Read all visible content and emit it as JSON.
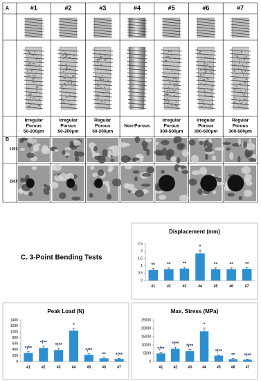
{
  "panel_a": {
    "label": "A",
    "headers": [
      "#1",
      "#2",
      "#3",
      "#4",
      "#5",
      "#6",
      "#7"
    ],
    "descriptions": [
      [
        "Irregular",
        "Porous",
        "50-200μm"
      ],
      [
        "Irregular",
        "Porous",
        "50-200μm"
      ],
      [
        "Regular",
        "Porous",
        "50-200μm"
      ],
      [
        "Non-Porous"
      ],
      [
        "Irregular",
        "Porous",
        "300-500μm"
      ],
      [
        "Irregular",
        "Porous",
        "300-500μm"
      ],
      [
        "Regular",
        "Porous",
        "300-500μm"
      ]
    ]
  },
  "panel_b": {
    "label": "B",
    "magnifications": [
      "100X",
      "250X"
    ]
  },
  "panel_c_title": "C. 3-Point Bending Tests",
  "chart_data": [
    {
      "type": "bar",
      "title": "Displacement (mm)",
      "categories": [
        "#1",
        "#2",
        "#3",
        "#4",
        "#5",
        "#6",
        "#7"
      ],
      "values": [
        0.72,
        0.78,
        0.82,
        1.85,
        0.78,
        0.78,
        0.8
      ],
      "errors": [
        0.1,
        0.08,
        0.1,
        0.22,
        0.08,
        0.08,
        0.08
      ],
      "annotations": [
        "**",
        "**",
        "**",
        "*",
        "**",
        "**",
        "**"
      ],
      "color": "#2e8fd0",
      "ylim": [
        0,
        2.5
      ],
      "yticks": [
        0,
        0.5,
        1,
        1.5,
        2,
        2.5
      ]
    },
    {
      "type": "bar",
      "title": "Peak Load (N)",
      "categories": [
        "#1",
        "#2",
        "#3",
        "#4",
        "#5",
        "#6",
        "#7"
      ],
      "values": [
        290,
        460,
        390,
        1040,
        230,
        110,
        90
      ],
      "errors": [
        40,
        60,
        50,
        80,
        30,
        20,
        20
      ],
      "annotations": [
        "*/**",
        "*/**",
        "*/**",
        "*",
        "*/**",
        "**",
        "*/**"
      ],
      "color": "#2e8fd0",
      "ylim": [
        0,
        1400
      ],
      "yticks": [
        0,
        200,
        400,
        600,
        800,
        1000,
        1200,
        1400
      ]
    },
    {
      "type": "bar",
      "title": "Max. Stress (MPa)",
      "categories": [
        "#1",
        "#2",
        "#3",
        "#4",
        "#5",
        "#6",
        "#7"
      ],
      "values": [
        4900,
        7700,
        6300,
        18200,
        3600,
        1500,
        1200
      ],
      "errors": [
        700,
        1000,
        900,
        2000,
        500,
        300,
        300
      ],
      "annotations": [
        "*/**",
        "*/**",
        "*/**",
        "*",
        "*/**",
        "**",
        "*/**"
      ],
      "color": "#2e8fd0",
      "ylim": [
        0,
        25000
      ],
      "yticks": [
        0,
        5000,
        10000,
        15000,
        20000,
        25000
      ]
    }
  ]
}
